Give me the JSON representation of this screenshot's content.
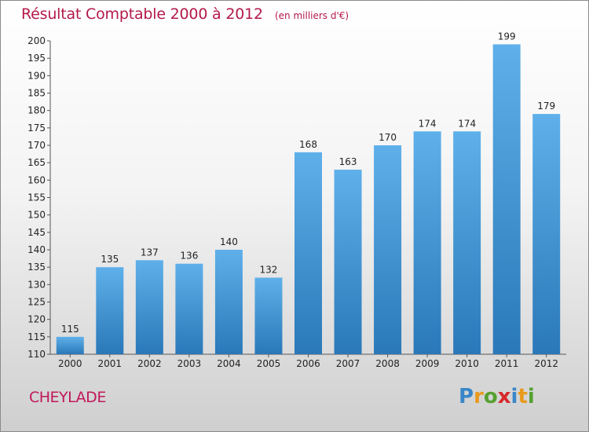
{
  "title": "Résultat Comptable 2000 à 2012",
  "subtitle": "(en milliers d'€)",
  "commune": "CHEYLADE",
  "logo": {
    "letters": [
      "P",
      "r",
      "o",
      "x",
      "i",
      "t",
      "i"
    ],
    "colors": [
      "#3a86c8",
      "#e89a1c",
      "#55a030",
      "#d6272b",
      "#3a86c8",
      "#e89a1c",
      "#55a030"
    ]
  },
  "colors": {
    "bar_light": "#5fb0ea",
    "bar_dark": "#2a78b8",
    "title": "#b4194a"
  },
  "chart_data": {
    "type": "bar",
    "title": "Résultat Comptable 2000 à 2012",
    "subtitle": "(en milliers d'€)",
    "categories": [
      "2000",
      "2001",
      "2002",
      "2003",
      "2004",
      "2005",
      "2006",
      "2007",
      "2008",
      "2009",
      "2010",
      "2011",
      "2012"
    ],
    "values": [
      115,
      135,
      137,
      136,
      140,
      132,
      168,
      163,
      170,
      174,
      174,
      199,
      179
    ],
    "ylim": [
      110,
      200
    ],
    "yticks": [
      110,
      115,
      120,
      125,
      130,
      135,
      140,
      145,
      150,
      155,
      160,
      165,
      170,
      175,
      180,
      185,
      190,
      195,
      200
    ],
    "grid": false,
    "legend": "none"
  }
}
